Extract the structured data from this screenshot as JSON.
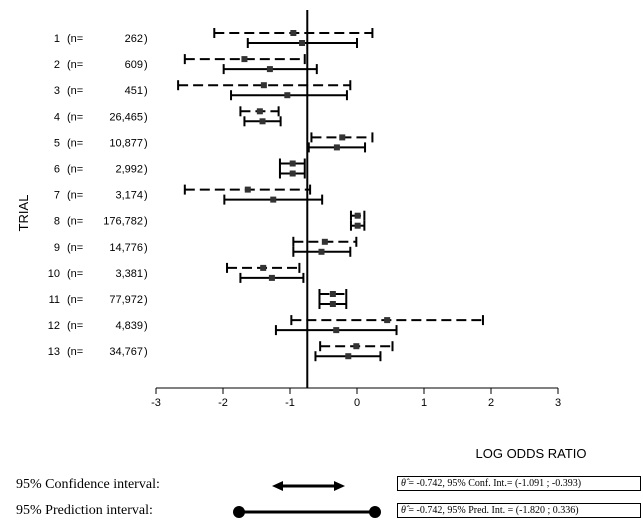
{
  "chart_data": {
    "type": "forest",
    "ylabel": "TRIAL",
    "xlabel": "LOG ODDS RATIO",
    "xlim": [
      -3,
      3
    ],
    "xticks": [
      -3,
      -2,
      -1,
      0,
      1,
      2,
      3
    ],
    "reference_line": -0.742,
    "trials": [
      {
        "label": "1",
        "n": "262",
        "ci": {
          "est": -0.95,
          "low": -2.13,
          "high": 0.23
        },
        "pi": {
          "est": -0.82,
          "low": -1.63,
          "high": 0.0
        }
      },
      {
        "label": "2",
        "n": "609",
        "ci": {
          "est": -1.68,
          "low": -2.57,
          "high": -0.78
        },
        "pi": {
          "est": -1.3,
          "low": -1.99,
          "high": -0.6
        }
      },
      {
        "label": "3",
        "n": "451",
        "ci": {
          "est": -1.39,
          "low": -2.67,
          "high": -0.1
        },
        "pi": {
          "est": -1.04,
          "low": -1.88,
          "high": -0.15
        }
      },
      {
        "label": "4",
        "n": "26,465",
        "ci": {
          "est": -1.45,
          "low": -1.74,
          "high": -1.17
        },
        "pi": {
          "est": -1.41,
          "low": -1.68,
          "high": -1.14
        }
      },
      {
        "label": "5",
        "n": "10,877",
        "ci": {
          "est": -0.22,
          "low": -0.68,
          "high": 0.23
        },
        "pi": {
          "est": -0.3,
          "low": -0.72,
          "high": 0.12
        }
      },
      {
        "label": "6",
        "n": "2,992",
        "ci": {
          "est": -0.96,
          "low": -1.15,
          "high": -0.78
        },
        "pi": {
          "est": -0.96,
          "low": -1.15,
          "high": -0.78
        }
      },
      {
        "label": "7",
        "n": "3,174",
        "ci": {
          "est": -1.63,
          "low": -2.57,
          "high": -0.7
        },
        "pi": {
          "est": -1.25,
          "low": -1.98,
          "high": -0.52
        }
      },
      {
        "label": "8",
        "n": "176,782",
        "ci": {
          "est": 0.01,
          "low": -0.09,
          "high": 0.11
        },
        "pi": {
          "est": 0.01,
          "low": -0.09,
          "high": 0.11
        }
      },
      {
        "label": "9",
        "n": "14,776",
        "ci": {
          "est": -0.48,
          "low": -0.95,
          "high": -0.01
        },
        "pi": {
          "est": -0.53,
          "low": -0.95,
          "high": -0.1
        }
      },
      {
        "label": "10",
        "n": "3,381",
        "ci": {
          "est": -1.4,
          "low": -1.94,
          "high": -0.86
        },
        "pi": {
          "est": -1.27,
          "low": -1.74,
          "high": -0.8
        }
      },
      {
        "label": "11",
        "n": "77,972",
        "ci": {
          "est": -0.36,
          "low": -0.56,
          "high": -0.16
        },
        "pi": {
          "est": -0.36,
          "low": -0.56,
          "high": -0.16
        }
      },
      {
        "label": "12",
        "n": "4,839",
        "ci": {
          "est": 0.45,
          "low": -0.98,
          "high": 1.88
        },
        "pi": {
          "est": -0.31,
          "low": -1.21,
          "high": 0.59
        }
      },
      {
        "label": "13",
        "n": "34,767",
        "ci": {
          "est": -0.01,
          "low": -0.55,
          "high": 0.53
        },
        "pi": {
          "est": -0.13,
          "low": -0.62,
          "high": 0.35
        }
      }
    ]
  },
  "legend": {
    "confidence_label": "95% Confidence interval:",
    "prediction_label": "95%  Prediction interval:",
    "confidence_summary": " = -0.742, 95% Conf. Int.= (-1.091 ; -0.393)",
    "prediction_summary": " = -0.742, 95% Pred. Int. = (-1.820 ;  0.336)",
    "theta_symbol": "θ̂"
  }
}
